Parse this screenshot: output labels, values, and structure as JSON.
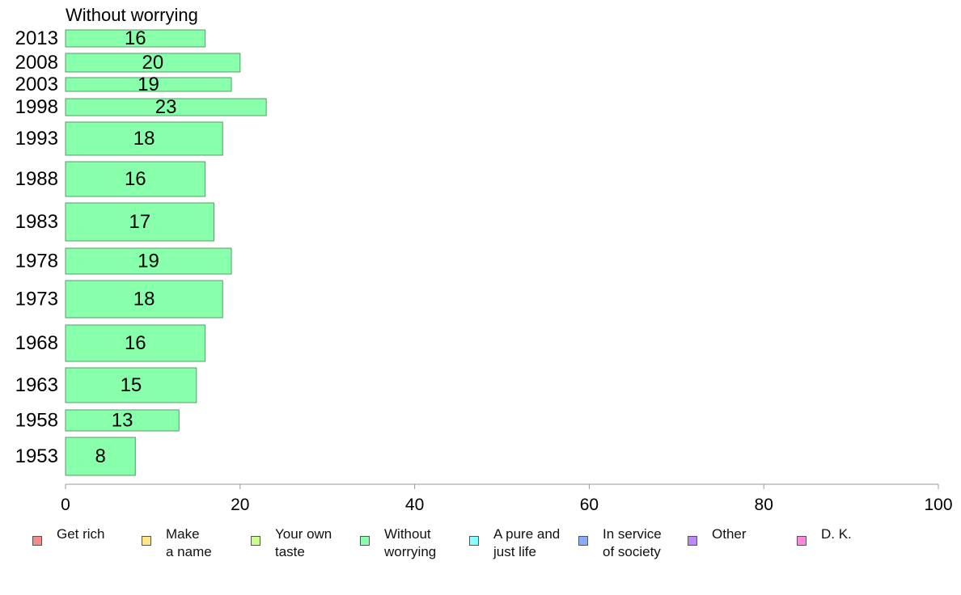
{
  "chart_data": {
    "type": "bar",
    "orientation": "horizontal",
    "title": "Without worrying",
    "categories": [
      "2013",
      "2008",
      "2003",
      "1998",
      "1993",
      "1988",
      "1983",
      "1978",
      "1973",
      "1968",
      "1963",
      "1958",
      "1953"
    ],
    "values": [
      16,
      20,
      19,
      23,
      18,
      16,
      17,
      19,
      18,
      16,
      15,
      13,
      8
    ],
    "series_color": "#88ffaa",
    "xlim": [
      0,
      100
    ],
    "x_ticks": [
      "0",
      "20",
      "40",
      "60",
      "80",
      "100"
    ],
    "grid": false,
    "legend_position": "bottom",
    "legend": [
      {
        "label": "Get rich",
        "color": "#f28c8c"
      },
      {
        "label": "Make\na name",
        "color": "#ffe680"
      },
      {
        "label": "Your own\ntaste",
        "color": "#ccff88"
      },
      {
        "label": "Without\nworrying",
        "color": "#88ffaa"
      },
      {
        "label": "A pure and\njust life",
        "color": "#88ffff"
      },
      {
        "label": "In service\nof society",
        "color": "#88aaff"
      },
      {
        "label": "Other",
        "color": "#bb88ff"
      },
      {
        "label": "D. K.",
        "color": "#ff88dd"
      }
    ]
  }
}
